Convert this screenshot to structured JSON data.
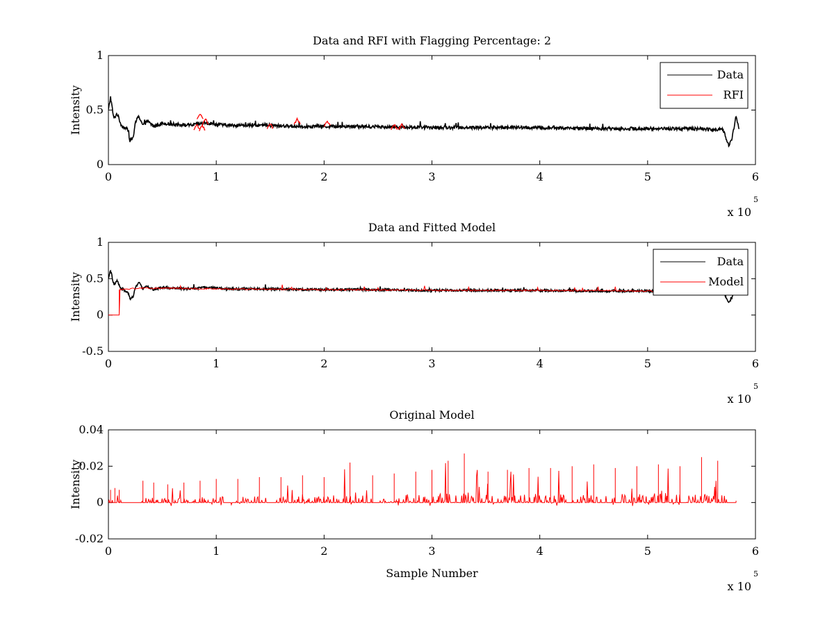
{
  "figure": {
    "background": "#ffffff",
    "data_color": "#000000",
    "rfi_color": "#ff0000"
  },
  "chart_data": [
    {
      "type": "line",
      "title": "Data and RFI with Flagging Percentage: 2",
      "xlabel": "",
      "ylabel": "Intensity",
      "xlim": [
        0,
        600000
      ],
      "ylim": [
        0,
        1
      ],
      "x_ticks": [
        0,
        1,
        2,
        3,
        4,
        5,
        6
      ],
      "y_ticks": [
        "0",
        "0.5",
        "1"
      ],
      "x_exponent": {
        "base": "x 10",
        "power": "5"
      },
      "legend": {
        "placement": "top-right",
        "entries": [
          "Data",
          "RFI"
        ]
      },
      "grid": false,
      "series": [
        {
          "name": "Data",
          "color": "#000000",
          "x": [
            0,
            2000,
            5000,
            8000,
            12000,
            15000,
            18000,
            20000,
            23000,
            25000,
            28000,
            32000,
            36000,
            42000,
            50000,
            60000,
            75000,
            90000,
            110000,
            140000,
            180000,
            230000,
            300000,
            380000,
            460000,
            540000,
            570000,
            575000,
            578000,
            582000,
            585000
          ],
          "y": [
            0.5,
            0.62,
            0.42,
            0.47,
            0.36,
            0.34,
            0.32,
            0.22,
            0.25,
            0.38,
            0.45,
            0.36,
            0.4,
            0.35,
            0.38,
            0.37,
            0.36,
            0.38,
            0.36,
            0.36,
            0.35,
            0.35,
            0.34,
            0.34,
            0.33,
            0.33,
            0.32,
            0.18,
            0.22,
            0.45,
            0.32
          ]
        },
        {
          "name": "RFI",
          "color": "#ff0000",
          "x": [
            82000,
            85000,
            87000,
            90000,
            150000,
            175000,
            203000,
            265000,
            272000
          ],
          "y": [
            0.37,
            0.47,
            0.36,
            0.42,
            0.38,
            0.42,
            0.4,
            0.37,
            0.37
          ]
        }
      ]
    },
    {
      "type": "line",
      "title": "Data and Fitted Model",
      "xlabel": "",
      "ylabel": "Intensity",
      "xlim": [
        0,
        600000
      ],
      "ylim": [
        -0.5,
        1
      ],
      "x_ticks": [
        0,
        1,
        2,
        3,
        4,
        5,
        6
      ],
      "y_ticks": [
        "-0.5",
        "0",
        "0.5",
        "1"
      ],
      "x_exponent": {
        "base": "x 10",
        "power": "5"
      },
      "legend": {
        "placement": "top-right",
        "entries": [
          "Data",
          "Model"
        ]
      },
      "grid": false,
      "series": [
        {
          "name": "Data",
          "color": "#000000",
          "x": [
            0,
            2000,
            5000,
            8000,
            12000,
            15000,
            18000,
            20000,
            23000,
            25000,
            28000,
            32000,
            36000,
            42000,
            50000,
            60000,
            75000,
            90000,
            110000,
            140000,
            180000,
            230000,
            300000,
            380000,
            460000,
            540000,
            570000,
            575000,
            578000,
            582000,
            585000
          ],
          "y": [
            0.5,
            0.62,
            0.42,
            0.47,
            0.36,
            0.34,
            0.32,
            0.22,
            0.25,
            0.38,
            0.45,
            0.36,
            0.4,
            0.35,
            0.38,
            0.37,
            0.36,
            0.38,
            0.36,
            0.36,
            0.35,
            0.35,
            0.34,
            0.34,
            0.33,
            0.33,
            0.32,
            0.18,
            0.22,
            0.45,
            0.32
          ]
        },
        {
          "name": "Model",
          "color": "#ff0000",
          "x": [
            0,
            10000,
            10000,
            30000,
            60000,
            100000,
            200000,
            300000,
            400000,
            500000,
            540000
          ],
          "y": [
            0,
            0,
            0.35,
            0.37,
            0.37,
            0.36,
            0.35,
            0.34,
            0.34,
            0.33,
            0.33
          ]
        }
      ]
    },
    {
      "type": "line",
      "title": "Original Model",
      "xlabel": "Sample Number",
      "ylabel": "Intensity",
      "xlim": [
        0,
        600000
      ],
      "ylim": [
        -0.02,
        0.04
      ],
      "x_ticks": [
        0,
        1,
        2,
        3,
        4,
        5,
        6
      ],
      "y_ticks": [
        "-0.02",
        "0",
        "0.02",
        "0.04"
      ],
      "x_exponent": {
        "base": "x 10",
        "power": "5"
      },
      "legend": null,
      "grid": false,
      "series": [
        {
          "color": "#ff0000",
          "x": [
            2000,
            6000,
            10000,
            32000,
            42000,
            55000,
            70000,
            85000,
            100000,
            120000,
            140000,
            160000,
            180000,
            200000,
            224000,
            245000,
            265000,
            285000,
            300000,
            315000,
            330000,
            352000,
            370000,
            390000,
            410000,
            430000,
            450000,
            470000,
            490000,
            510000,
            530000,
            550000,
            565000,
            582000
          ],
          "y": [
            0.007,
            0.008,
            0.007,
            0.012,
            0.011,
            0.01,
            0.011,
            0.012,
            0.013,
            0.013,
            0.014,
            0.014,
            0.015,
            0.014,
            0.022,
            0.015,
            0.016,
            0.017,
            0.018,
            0.023,
            0.027,
            0.017,
            0.018,
            0.019,
            0.019,
            0.02,
            0.021,
            0.019,
            0.02,
            0.021,
            0.02,
            0.025,
            0.023,
            0.001
          ]
        }
      ]
    }
  ]
}
